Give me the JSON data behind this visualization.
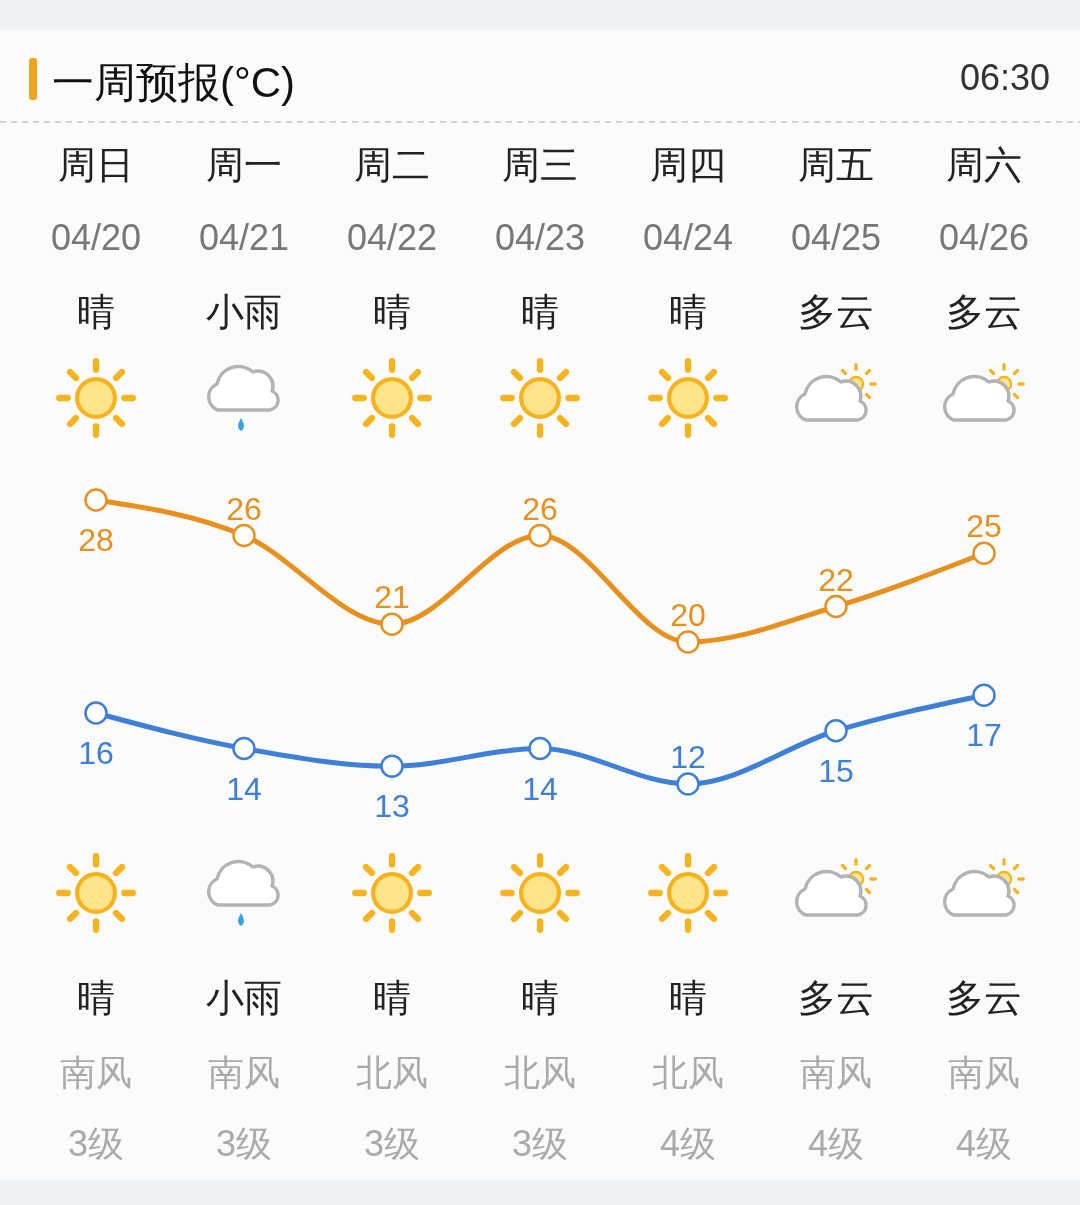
{
  "chart_data": {
    "type": "line",
    "title": "一周预报(°C)",
    "categories": [
      "周日",
      "周一",
      "周二",
      "周三",
      "周四",
      "周五",
      "周六"
    ],
    "series": [
      {
        "color": "#e8901e",
        "values": [
          28,
          26,
          21,
          26,
          20,
          22,
          25
        ]
      },
      {
        "color": "#3d7fd9",
        "values": [
          16,
          14,
          13,
          14,
          12,
          15,
          17
        ]
      }
    ],
    "data_labels": true,
    "marker": "circle",
    "line_style": "solid",
    "tick_labels": "x",
    "annotations": [
      "06:30",
      "04/20",
      "04/21",
      "04/22",
      "04/23",
      "04/24",
      "04/25",
      "04/26",
      "晴",
      "小雨",
      "晴",
      "晴",
      "晴",
      "多云",
      "多云",
      "晴",
      "小雨",
      "晴",
      "晴",
      "晴",
      "多云",
      "多云",
      "南风",
      "南风",
      "北风",
      "北风",
      "北风",
      "南风",
      "南风",
      "3级",
      "3级",
      "3级",
      "3级",
      "4级",
      "4级",
      "4级"
    ]
  }
}
